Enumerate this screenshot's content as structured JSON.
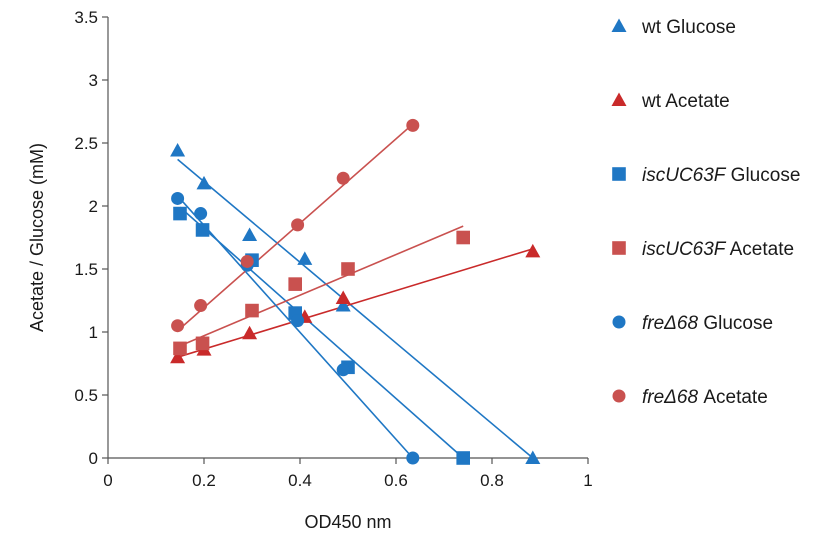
{
  "chart_data": {
    "type": "scatter",
    "title": "",
    "xlabel": "OD450 nm",
    "ylabel": "Acetate / Glucose (mM)",
    "xlim": [
      0,
      1
    ],
    "ylim": [
      0,
      3.5
    ],
    "xticks": [
      "0",
      "0.2",
      "0.4",
      "0.6",
      "0.8",
      "1"
    ],
    "yticks": [
      "0",
      "0.5",
      "1",
      "1.5",
      "2",
      "2.5",
      "3",
      "3.5"
    ],
    "grid": false,
    "legend_position": "right",
    "series": [
      {
        "name": "wt Glucose",
        "name_italic": "",
        "name_rest": "wt Glucose",
        "marker": "triangle",
        "color": "#1f77c4",
        "points": [
          [
            0.145,
            2.44
          ],
          [
            0.2,
            2.18
          ],
          [
            0.295,
            1.77
          ],
          [
            0.41,
            1.58
          ],
          [
            0.49,
            1.21
          ],
          [
            0.885,
            0.0
          ]
        ],
        "fit_line": [
          [
            0.145,
            2.37
          ],
          [
            0.885,
            0.0
          ]
        ]
      },
      {
        "name": "wt Acetate",
        "name_italic": "",
        "name_rest": "wt Acetate",
        "marker": "triangle",
        "color": "#c92a2a",
        "points": [
          [
            0.145,
            0.8
          ],
          [
            0.2,
            0.86
          ],
          [
            0.295,
            0.99
          ],
          [
            0.41,
            1.12
          ],
          [
            0.49,
            1.27
          ],
          [
            0.885,
            1.64
          ]
        ],
        "fit_line": [
          [
            0.145,
            0.8
          ],
          [
            0.885,
            1.66
          ]
        ]
      },
      {
        "name": "iscUC63F Glucose",
        "name_italic": "iscUC63F",
        "name_rest": " Glucose",
        "marker": "square",
        "color": "#1f77c4",
        "points": [
          [
            0.15,
            1.94
          ],
          [
            0.197,
            1.81
          ],
          [
            0.3,
            1.57
          ],
          [
            0.39,
            1.15
          ],
          [
            0.5,
            0.72
          ],
          [
            0.74,
            0.0
          ]
        ],
        "fit_line": [
          [
            0.15,
            1.99
          ],
          [
            0.74,
            0.0
          ]
        ]
      },
      {
        "name": "iscUC63F Acetate",
        "name_italic": "iscUC63F",
        "name_rest": " Acetate",
        "marker": "square",
        "color": "#c9514f",
        "points": [
          [
            0.15,
            0.87
          ],
          [
            0.197,
            0.91
          ],
          [
            0.3,
            1.17
          ],
          [
            0.39,
            1.38
          ],
          [
            0.5,
            1.5
          ],
          [
            0.74,
            1.75
          ]
        ],
        "fit_line": [
          [
            0.15,
            0.89
          ],
          [
            0.74,
            1.84
          ]
        ]
      },
      {
        "name": "freΔ68 Glucose",
        "name_italic": "freΔ68",
        "name_rest": " Glucose",
        "marker": "circle",
        "color": "#1f77c4",
        "points": [
          [
            0.145,
            2.06
          ],
          [
            0.193,
            1.94
          ],
          [
            0.29,
            1.53
          ],
          [
            0.395,
            1.09
          ],
          [
            0.49,
            0.7
          ],
          [
            0.635,
            0.0
          ]
        ],
        "fit_line": [
          [
            0.145,
            2.08
          ],
          [
            0.635,
            0.0
          ]
        ]
      },
      {
        "name": "freΔ68 Acetate",
        "name_italic": "freΔ68",
        "name_rest": " Acetate",
        "marker": "circle",
        "color": "#c9514f",
        "points": [
          [
            0.145,
            1.05
          ],
          [
            0.193,
            1.21
          ],
          [
            0.29,
            1.56
          ],
          [
            0.395,
            1.85
          ],
          [
            0.49,
            2.22
          ],
          [
            0.635,
            2.64
          ]
        ],
        "fit_line": [
          [
            0.145,
            1.01
          ],
          [
            0.635,
            2.65
          ]
        ]
      }
    ]
  }
}
